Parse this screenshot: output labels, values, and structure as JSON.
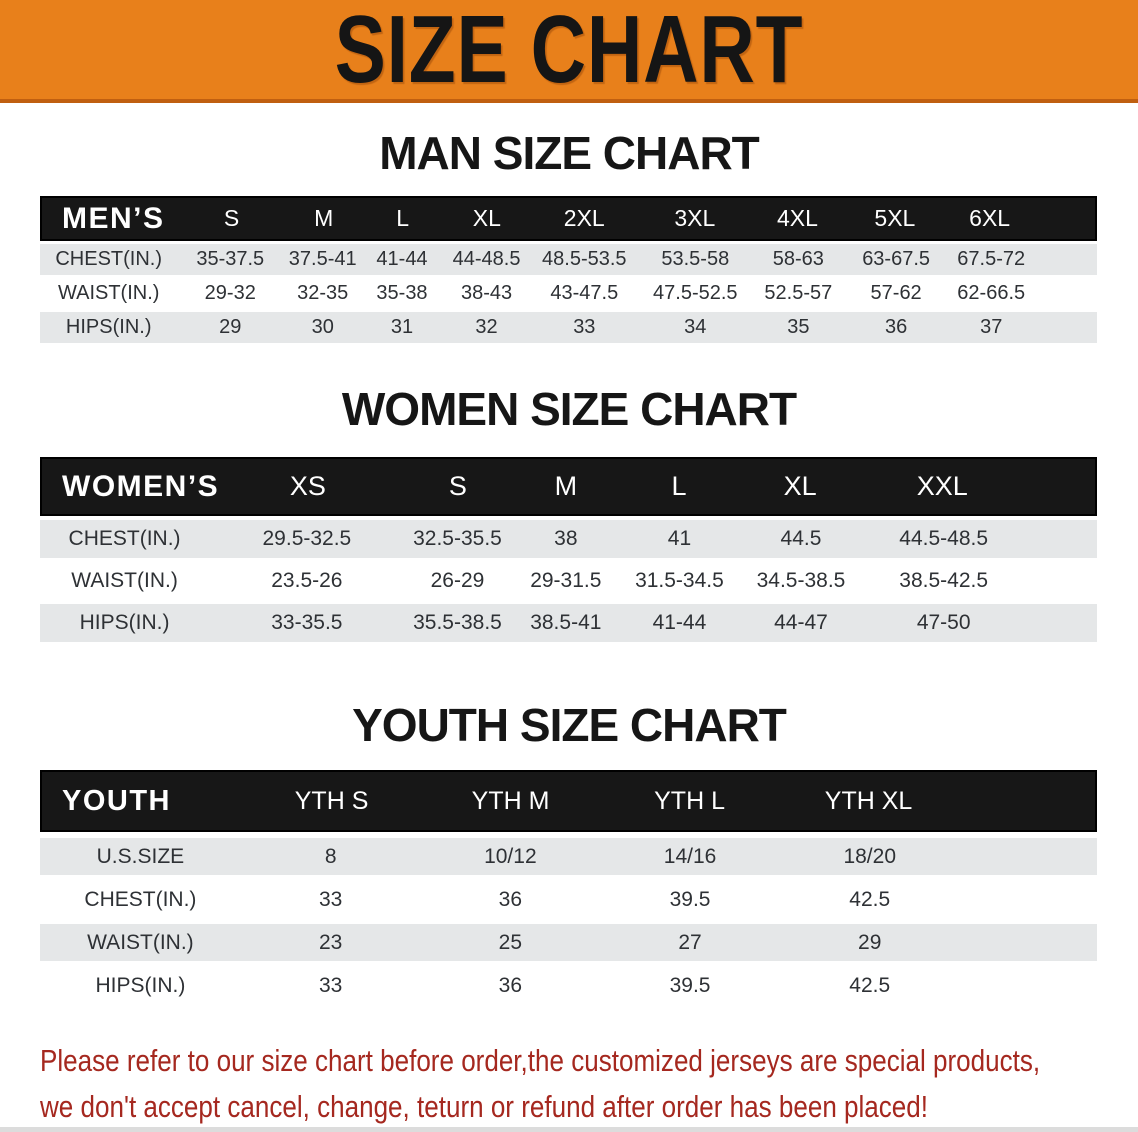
{
  "banner": {
    "title": "SIZE CHART",
    "bg_color": "#E8801B",
    "border_color": "#C05F10"
  },
  "sections": [
    {
      "heading": "MAN SIZE CHART",
      "table": {
        "header": [
          "MEN’S",
          "S",
          "M",
          "L",
          "XL",
          "2XL",
          "3XL",
          "4XL",
          "5XL",
          "6XL"
        ],
        "rows": [
          {
            "label": "CHEST(IN.)",
            "values": [
              "35-37.5",
              "37.5-41",
              "41-44",
              "44-48.5",
              "48.5-53.5",
              "53.5-58",
              "58-63",
              "63-67.5",
              "67.5-72"
            ]
          },
          {
            "label": "WAIST(IN.)",
            "values": [
              "29-32",
              "32-35",
              "35-38",
              "38-43",
              "43-47.5",
              "47.5-52.5",
              "52.5-57",
              "57-62",
              "62-66.5"
            ]
          },
          {
            "label": "HIPS(IN.)",
            "values": [
              "29",
              "30",
              "31",
              "32",
              "33",
              "34",
              "35",
              "36",
              "37"
            ]
          }
        ]
      }
    },
    {
      "heading": "WOMEN SIZE CHART",
      "table": {
        "header": [
          "WOMEN’S",
          "XS",
          "S",
          "M",
          "L",
          "XL",
          "XXL"
        ],
        "rows": [
          {
            "label": "CHEST(IN.)",
            "values": [
              "29.5-32.5",
              "32.5-35.5",
              "38",
              "41",
              "44.5",
              "44.5-48.5"
            ]
          },
          {
            "label": "WAIST(IN.)",
            "values": [
              "23.5-26",
              "26-29",
              "29-31.5",
              "31.5-34.5",
              "34.5-38.5",
              "38.5-42.5"
            ]
          },
          {
            "label": "HIPS(IN.)",
            "values": [
              "33-35.5",
              "35.5-38.5",
              "38.5-41",
              "41-44",
              "44-47",
              "47-50"
            ]
          }
        ]
      }
    },
    {
      "heading": "YOUTH SIZE CHART",
      "table": {
        "header": [
          "YOUTH",
          "YTH S",
          "YTH M",
          "YTH L",
          "YTH XL"
        ],
        "rows": [
          {
            "label": "U.S.SIZE",
            "values": [
              "8",
              "10/12",
              "14/16",
              "18/20"
            ]
          },
          {
            "label": "CHEST(IN.)",
            "values": [
              "33",
              "36",
              "39.5",
              "42.5"
            ]
          },
          {
            "label": "WAIST(IN.)",
            "values": [
              "23",
              "25",
              "27",
              "29"
            ]
          },
          {
            "label": "HIPS(IN.)",
            "values": [
              "33",
              "36",
              "39.5",
              "42.5"
            ]
          }
        ]
      }
    }
  ],
  "footer": {
    "line1": "Please refer to our size chart before order,the customized jerseys are special products,",
    "line2": "we don't accept cancel, change, teturn or refund after order has been placed!",
    "text_color": "#A5281F"
  },
  "colors": {
    "banner_orange": "#E8801B",
    "table_header_black": "#171717",
    "row_gray": "#E5E7E8",
    "row_white": "#FFFFFF",
    "data_text": "#2E3135"
  }
}
